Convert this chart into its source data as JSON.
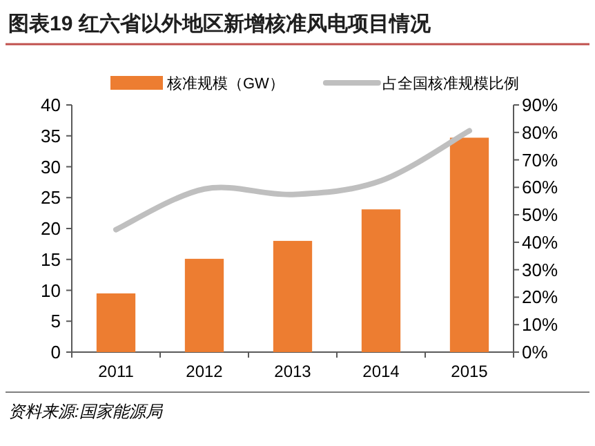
{
  "chart_data": {
    "type": "bar",
    "title": "图表19   红六省以外地区新增核准风电项目情况",
    "categories": [
      "2011",
      "2012",
      "2013",
      "2014",
      "2015"
    ],
    "series": [
      {
        "name": "核准规模（GW）",
        "color": "#ed7d31",
        "values": [
          9.5,
          15.1,
          18.0,
          23.1,
          34.7
        ]
      },
      {
        "name": "占全国核准规模比例",
        "type": "line",
        "axis": "y2",
        "color": "#bfbfbf",
        "values": [
          44.6,
          59.4,
          57.4,
          62.4,
          80.6
        ]
      }
    ],
    "ylim": [
      0,
      40
    ],
    "yticks": [
      0,
      5,
      10,
      15,
      20,
      25,
      30,
      35,
      40
    ],
    "y2lim": [
      0,
      90
    ],
    "y2ticks": [
      {
        "value": 0,
        "label": "0%"
      },
      {
        "value": 10,
        "label": "10%"
      },
      {
        "value": 20,
        "label": "20%"
      },
      {
        "value": 30,
        "label": "30%"
      },
      {
        "value": 40,
        "label": "40%"
      },
      {
        "value": 50,
        "label": "50%"
      },
      {
        "value": 60,
        "label": "60%"
      },
      {
        "value": 70,
        "label": "70%"
      },
      {
        "value": 80,
        "label": "80%"
      },
      {
        "value": 90,
        "label": "90%"
      }
    ],
    "legend": "top",
    "grid": false,
    "marker": "none",
    "annotations": [
      "资料来源:国家能源局"
    ]
  }
}
